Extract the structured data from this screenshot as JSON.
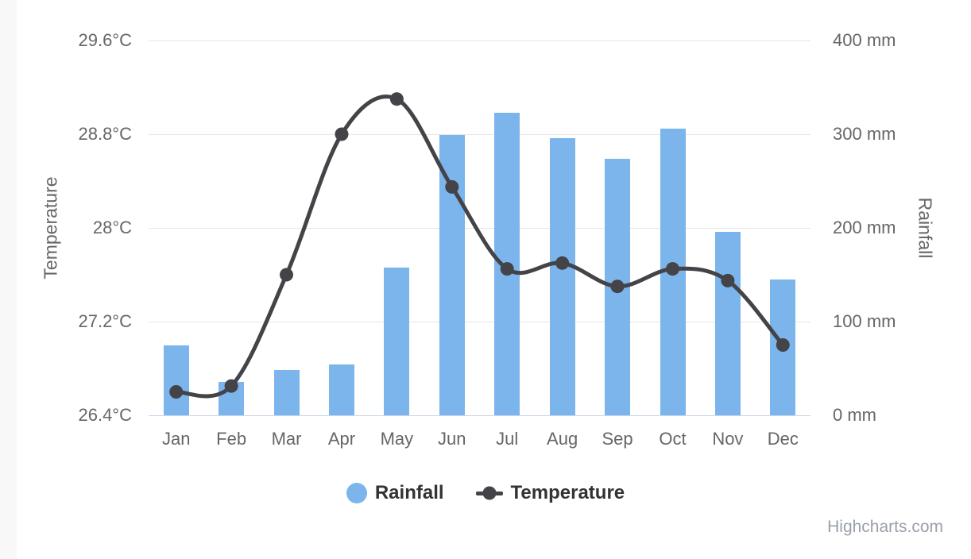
{
  "page": {
    "background": "#ffffff",
    "left_margin_color": "#f8f8f8"
  },
  "legend": {
    "items": [
      {
        "label": "Rainfall",
        "marker": "circle-swatch",
        "color": "#7cb5ec"
      },
      {
        "label": "Temperature",
        "marker": "line-dot-swatch",
        "color": "#434348"
      }
    ]
  },
  "credits": {
    "label": "Highcharts.com",
    "color": "#999fa8"
  },
  "chart_data": {
    "type": "bar",
    "subtype": "combo-column-spline-dual-axes",
    "title": "",
    "categories": [
      "Jan",
      "Feb",
      "Mar",
      "Apr",
      "May",
      "Jun",
      "Jul",
      "Aug",
      "Sep",
      "Oct",
      "Nov",
      "Dec"
    ],
    "series": [
      {
        "name": "Rainfall",
        "type": "column",
        "axis": "right",
        "unit": "mm",
        "color": "#7cb5ec",
        "values": [
          75,
          36,
          48,
          54,
          158,
          299,
          323,
          296,
          274,
          306,
          196,
          145
        ]
      },
      {
        "name": "Temperature",
        "type": "spline",
        "axis": "left",
        "unit": "°C",
        "color": "#434348",
        "values": [
          26.6,
          26.65,
          27.6,
          28.8,
          29.1,
          28.35,
          27.65,
          27.7,
          27.5,
          27.65,
          27.55,
          27.0
        ]
      }
    ],
    "y_axis_left": {
      "title": "Temperature",
      "min": 26.4,
      "max": 29.6,
      "tick_labels": [
        "26.4°C",
        "27.2°C",
        "28°C",
        "28.8°C",
        "29.6°C"
      ]
    },
    "y_axis_right": {
      "title": "Rainfall",
      "min": 0,
      "max": 400,
      "tick_labels": [
        "0 mm",
        "100 mm",
        "200 mm",
        "300 mm",
        "400 mm"
      ]
    },
    "grid": true,
    "gridline_color": "#e6e6e6",
    "x_axis_line_color": "#ccd6eb",
    "label_color": "#666666",
    "legend_position": "bottom-center"
  }
}
